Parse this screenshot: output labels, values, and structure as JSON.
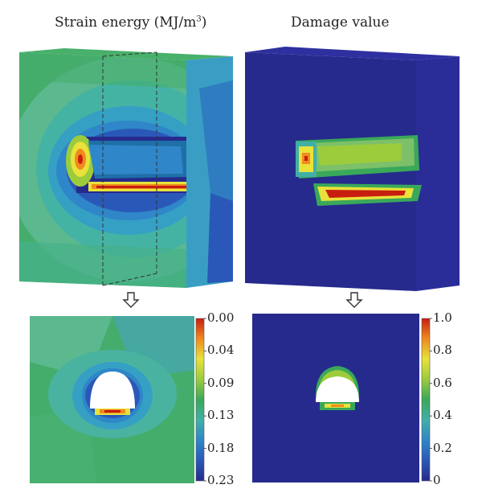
{
  "titles": {
    "left_prefix": "Strain energy (MJ/m",
    "left_sup": "3",
    "left_suffix": ")",
    "right": "Damage value"
  },
  "colorbar_left": {
    "labels": [
      "0.00",
      "0.04",
      "0.09",
      "0.13",
      "0.18",
      "0.23"
    ],
    "colors": [
      "#c81e10",
      "#f08a1e",
      "#e8e23a",
      "#9ccc3c",
      "#3aa85a",
      "#40b0a8",
      "#2f86c8",
      "#2a58b8",
      "#262a8c"
    ]
  },
  "colorbar_right": {
    "labels": [
      "1.0",
      "0.8",
      "0.6",
      "0.4",
      "0.2",
      "0"
    ],
    "colors": [
      "#c81e10",
      "#f08a1e",
      "#e8e23a",
      "#9ccc3c",
      "#3aa85a",
      "#40b0a8",
      "#2f86c8",
      "#2a58b8",
      "#262a8c"
    ]
  },
  "arrow_glyph": "down-arrow-icon"
}
